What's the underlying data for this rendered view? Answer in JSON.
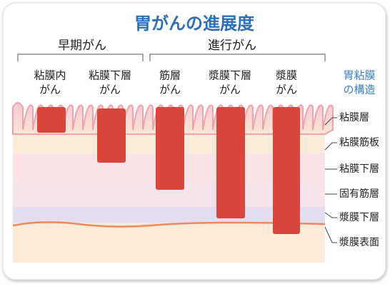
{
  "title": "胃がんの進展度",
  "groups": [
    {
      "label": "早期がん"
    },
    {
      "label": "進行がん"
    }
  ],
  "columns": [
    {
      "lines": [
        "粘膜内",
        "がん"
      ]
    },
    {
      "lines": [
        "粘膜下層",
        "がん"
      ]
    },
    {
      "lines": [
        "筋層",
        "がん"
      ]
    },
    {
      "lines": [
        "漿膜下層",
        "がん"
      ]
    },
    {
      "lines": [
        "漿膜",
        "がん"
      ]
    }
  ],
  "structure_header": {
    "lines": [
      "胃粘膜",
      "の構造"
    ]
  },
  "layers": [
    "粘膜層",
    "粘膜筋板",
    "粘膜下層",
    "固有筋層",
    "漿膜下層",
    "漿膜表面"
  ]
}
